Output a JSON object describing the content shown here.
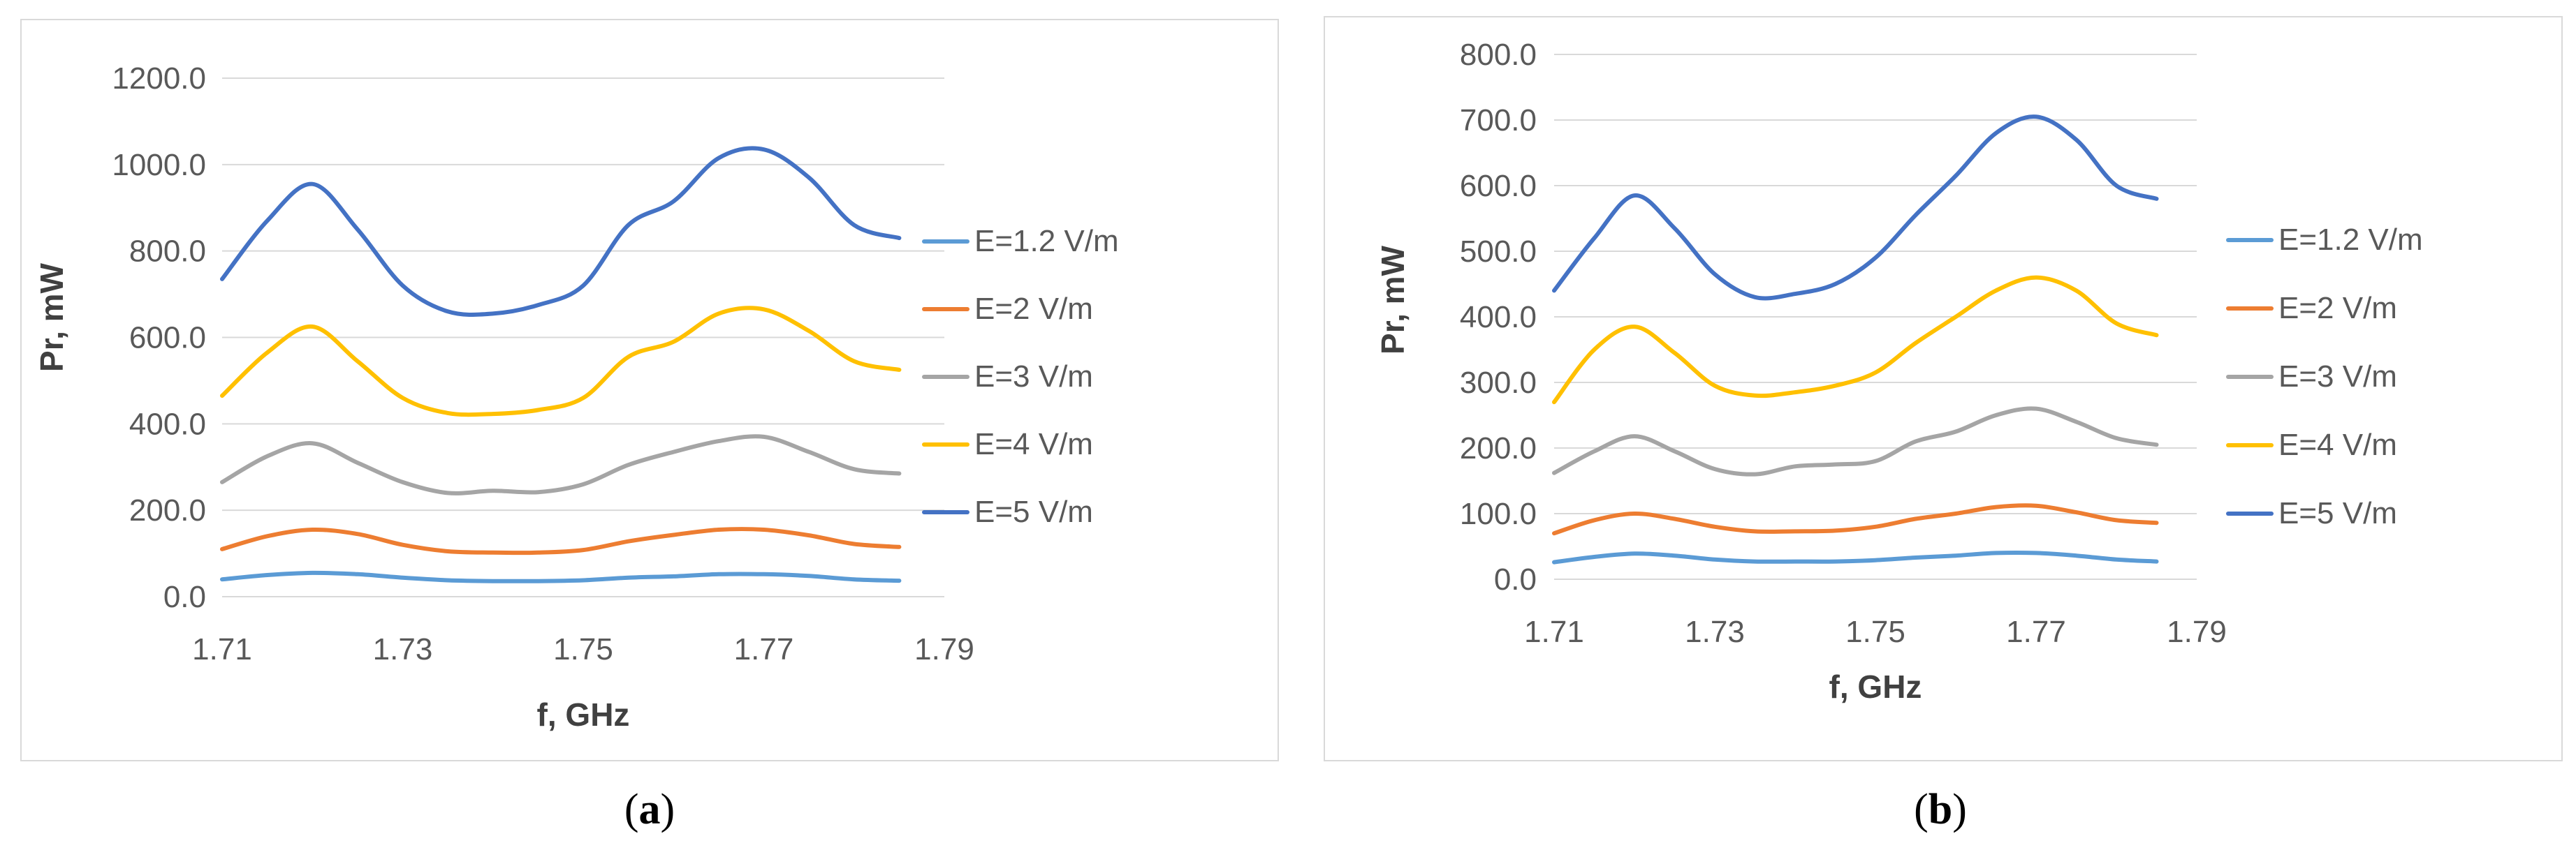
{
  "colors": {
    "E=1.2 V/m": "#5b9bd5",
    "E=2 V/m": "#ed7d31",
    "E=3 V/m": "#a5a5a5",
    "E=4 V/m": "#ffc000",
    "E=5 V/m": "#4472c4"
  },
  "captions": [
    {
      "open": "(",
      "letter": "a",
      "close": ")"
    },
    {
      "open": "(",
      "letter": "b",
      "close": ")"
    }
  ],
  "chart_data": [
    {
      "type": "line",
      "title": "",
      "xlabel": "f,  GHz",
      "ylabel": "Pr, mW",
      "xlim": [
        1.71,
        1.79
      ],
      "ylim": [
        0,
        1200
      ],
      "x_ticks": [
        "1.71",
        "1.73",
        "1.75",
        "1.77",
        "1.79"
      ],
      "y_ticks": [
        "0.0",
        "200.0",
        "400.0",
        "600.0",
        "800.0",
        "1000.0",
        "1200.0"
      ],
      "legend_position": "right",
      "grid": true,
      "x": [
        1.71,
        1.715,
        1.72,
        1.725,
        1.73,
        1.735,
        1.74,
        1.745,
        1.75,
        1.755,
        1.76,
        1.765,
        1.77,
        1.775,
        1.78,
        1.785
      ],
      "series": [
        {
          "name": "E=1.2 V/m",
          "values": [
            40,
            50,
            55,
            52,
            44,
            38,
            36,
            36,
            38,
            44,
            47,
            52,
            52,
            48,
            40,
            37
          ]
        },
        {
          "name": "E=2 V/m",
          "values": [
            110,
            140,
            155,
            145,
            120,
            105,
            102,
            102,
            108,
            128,
            143,
            155,
            155,
            142,
            122,
            115
          ]
        },
        {
          "name": "E=3 V/m",
          "values": [
            265,
            325,
            355,
            310,
            265,
            240,
            245,
            242,
            260,
            305,
            335,
            360,
            370,
            335,
            295,
            285
          ]
        },
        {
          "name": "E=4 V/m",
          "values": [
            465,
            565,
            625,
            545,
            460,
            425,
            423,
            432,
            460,
            555,
            590,
            655,
            665,
            615,
            545,
            525
          ]
        },
        {
          "name": "E=5 V/m",
          "values": [
            735,
            870,
            955,
            850,
            720,
            660,
            655,
            675,
            720,
            860,
            915,
            1015,
            1035,
            970,
            860,
            830
          ]
        }
      ]
    },
    {
      "type": "line",
      "title": "",
      "xlabel": "f,  GHz",
      "ylabel": "Pr, mW",
      "xlim": [
        1.71,
        1.79
      ],
      "ylim": [
        0,
        800
      ],
      "x_ticks": [
        "1.71",
        "1.73",
        "1.75",
        "1.77",
        "1.79"
      ],
      "y_ticks": [
        "0.0",
        "100.0",
        "200.0",
        "300.0",
        "400.0",
        "500.0",
        "600.0",
        "700.0",
        "800.0"
      ],
      "legend_position": "right",
      "grid": true,
      "x": [
        1.71,
        1.715,
        1.72,
        1.725,
        1.73,
        1.735,
        1.74,
        1.745,
        1.75,
        1.755,
        1.76,
        1.765,
        1.77,
        1.775,
        1.78,
        1.785
      ],
      "series": [
        {
          "name": "E=1.2 V/m",
          "values": [
            26,
            34,
            39,
            36,
            30,
            27,
            27,
            27,
            29,
            33,
            36,
            40,
            40,
            36,
            30,
            27
          ]
        },
        {
          "name": "E=2 V/m",
          "values": [
            70,
            90,
            100,
            92,
            80,
            73,
            73,
            74,
            80,
            92,
            100,
            110,
            112,
            102,
            90,
            86
          ]
        },
        {
          "name": "E=3 V/m",
          "values": [
            162,
            195,
            218,
            195,
            168,
            160,
            172,
            175,
            180,
            210,
            225,
            250,
            260,
            240,
            215,
            205
          ]
        },
        {
          "name": "E=4 V/m",
          "values": [
            270,
            350,
            385,
            345,
            295,
            280,
            285,
            295,
            315,
            360,
            400,
            440,
            460,
            440,
            390,
            372
          ]
        },
        {
          "name": "E=5 V/m",
          "values": [
            440,
            520,
            585,
            535,
            465,
            430,
            435,
            450,
            490,
            555,
            615,
            680,
            705,
            670,
            600,
            580
          ]
        }
      ]
    }
  ]
}
